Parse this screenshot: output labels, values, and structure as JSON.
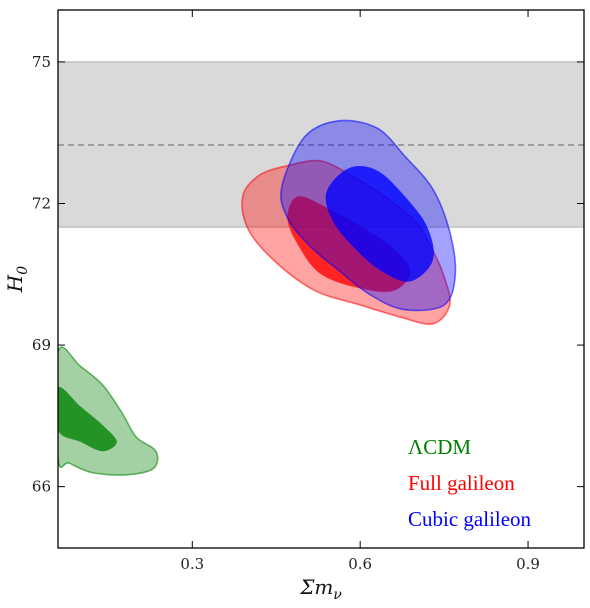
{
  "chart_data": {
    "type": "contour",
    "xlabel": "Σm_ν",
    "ylabel": "H_0",
    "xlim": [
      0.06,
      1.0
    ],
    "ylim": [
      64.7,
      76.1
    ],
    "x_ticks": [
      0.3,
      0.6,
      0.9
    ],
    "x_tick_labels": [
      "0.3",
      "0.6",
      "0.9"
    ],
    "y_ticks": [
      66,
      69,
      72,
      75
    ],
    "y_tick_labels": [
      "66",
      "69",
      "72",
      "75"
    ],
    "grid": false,
    "legend_position": "bottom-right",
    "band": {
      "y_range": [
        71.5,
        75.0
      ],
      "mean": 73.24,
      "color": "#d9d9d9"
    },
    "series": [
      {
        "name": "ΛCDM",
        "color": "#008000",
        "inner_contour": [
          [
            0.06,
            68.1
          ],
          [
            0.1,
            67.7
          ],
          [
            0.14,
            67.3
          ],
          [
            0.165,
            66.95
          ],
          [
            0.14,
            66.75
          ],
          [
            0.1,
            66.95
          ],
          [
            0.06,
            67.2
          ]
        ],
        "outer_contour": [
          [
            0.06,
            68.85
          ],
          [
            0.1,
            68.55
          ],
          [
            0.14,
            68.15
          ],
          [
            0.175,
            67.55
          ],
          [
            0.2,
            67.05
          ],
          [
            0.235,
            66.75
          ],
          [
            0.23,
            66.38
          ],
          [
            0.18,
            66.25
          ],
          [
            0.12,
            66.3
          ],
          [
            0.08,
            66.5
          ],
          [
            0.06,
            66.6
          ]
        ]
      },
      {
        "name": "Full galileon",
        "color": "#ff0000",
        "inner_contour": [
          [
            0.49,
            72.15
          ],
          [
            0.55,
            71.85
          ],
          [
            0.61,
            71.45
          ],
          [
            0.66,
            71.05
          ],
          [
            0.69,
            70.55
          ],
          [
            0.66,
            70.15
          ],
          [
            0.6,
            70.2
          ],
          [
            0.53,
            70.5
          ],
          [
            0.49,
            71.1
          ],
          [
            0.47,
            71.7
          ]
        ],
        "outer_contour": [
          [
            0.39,
            72.15
          ],
          [
            0.42,
            72.6
          ],
          [
            0.47,
            72.8
          ],
          [
            0.53,
            72.9
          ],
          [
            0.59,
            72.55
          ],
          [
            0.65,
            72.1
          ],
          [
            0.7,
            71.6
          ],
          [
            0.73,
            71.0
          ],
          [
            0.75,
            70.45
          ],
          [
            0.76,
            69.85
          ],
          [
            0.73,
            69.45
          ],
          [
            0.67,
            69.6
          ],
          [
            0.6,
            69.85
          ],
          [
            0.52,
            70.15
          ],
          [
            0.45,
            70.75
          ],
          [
            0.4,
            71.45
          ]
        ]
      },
      {
        "name": "Cubic galileon",
        "color": "#0000ff",
        "inner_contour": [
          [
            0.54,
            72.25
          ],
          [
            0.58,
            72.75
          ],
          [
            0.63,
            72.7
          ],
          [
            0.68,
            72.15
          ],
          [
            0.72,
            71.5
          ],
          [
            0.73,
            70.8
          ],
          [
            0.69,
            70.35
          ],
          [
            0.64,
            70.55
          ],
          [
            0.59,
            71.05
          ],
          [
            0.55,
            71.65
          ]
        ],
        "outer_contour": [
          [
            0.46,
            72.35
          ],
          [
            0.5,
            73.4
          ],
          [
            0.56,
            73.75
          ],
          [
            0.63,
            73.6
          ],
          [
            0.68,
            73.0
          ],
          [
            0.73,
            72.3
          ],
          [
            0.76,
            71.4
          ],
          [
            0.77,
            70.5
          ],
          [
            0.75,
            69.85
          ],
          [
            0.68,
            69.75
          ],
          [
            0.62,
            70.05
          ],
          [
            0.56,
            70.6
          ],
          [
            0.51,
            71.1
          ],
          [
            0.47,
            71.7
          ]
        ]
      }
    ]
  }
}
